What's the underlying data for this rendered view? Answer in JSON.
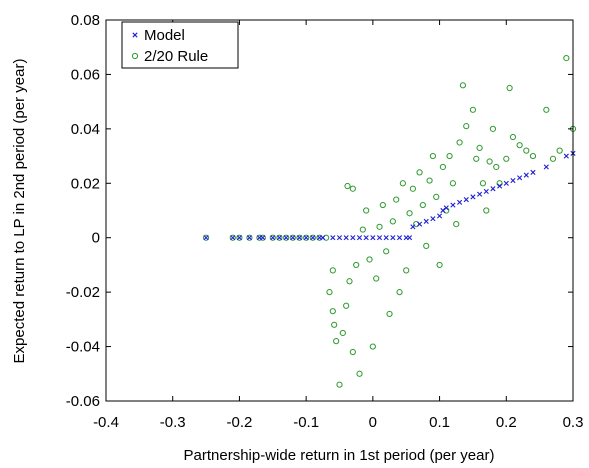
{
  "chart_data": {
    "type": "scatter",
    "xlabel": "Partnership-wide return in 1st period (per year)",
    "ylabel": "Expected return to LP in 2nd period (per year)",
    "xlim": [
      -0.4,
      0.3
    ],
    "ylim": [
      -0.06,
      0.08
    ],
    "x_ticks": [
      "-0.4",
      "-0.3",
      "-0.2",
      "-0.1",
      "0",
      "0.1",
      "0.2",
      "0.3"
    ],
    "y_ticks": [
      "-0.06",
      "-0.04",
      "-0.02",
      "0",
      "0.02",
      "0.04",
      "0.06",
      "0.08"
    ],
    "grid": false,
    "legend_placement": "top-left",
    "series": [
      {
        "name": "Model",
        "marker": "x",
        "color": "#1f1fd6",
        "points": [
          [
            -0.25,
            0.0
          ],
          [
            -0.21,
            0.0
          ],
          [
            -0.2,
            0.0
          ],
          [
            -0.185,
            0.0
          ],
          [
            -0.17,
            0.0
          ],
          [
            -0.165,
            0.0
          ],
          [
            -0.15,
            0.0
          ],
          [
            -0.14,
            0.0
          ],
          [
            -0.13,
            0.0
          ],
          [
            -0.12,
            0.0
          ],
          [
            -0.11,
            0.0
          ],
          [
            -0.1,
            0.0
          ],
          [
            -0.09,
            0.0
          ],
          [
            -0.08,
            0.0
          ],
          [
            -0.075,
            0.0
          ],
          [
            -0.06,
            0.0
          ],
          [
            -0.05,
            0.0
          ],
          [
            -0.04,
            0.0
          ],
          [
            -0.03,
            0.0
          ],
          [
            -0.02,
            0.0
          ],
          [
            -0.01,
            0.0
          ],
          [
            0.0,
            0.0
          ],
          [
            0.01,
            0.0
          ],
          [
            0.02,
            0.0
          ],
          [
            0.03,
            0.0
          ],
          [
            0.04,
            0.0
          ],
          [
            0.05,
            0.0
          ],
          [
            0.055,
            0.0
          ],
          [
            0.06,
            0.004
          ],
          [
            0.07,
            0.005
          ],
          [
            0.08,
            0.006
          ],
          [
            0.09,
            0.007
          ],
          [
            0.1,
            0.008
          ],
          [
            0.105,
            0.01
          ],
          [
            0.11,
            0.011
          ],
          [
            0.12,
            0.012
          ],
          [
            0.13,
            0.013
          ],
          [
            0.14,
            0.014
          ],
          [
            0.15,
            0.015
          ],
          [
            0.16,
            0.016
          ],
          [
            0.17,
            0.017
          ],
          [
            0.18,
            0.018
          ],
          [
            0.19,
            0.019
          ],
          [
            0.2,
            0.02
          ],
          [
            0.21,
            0.021
          ],
          [
            0.22,
            0.022
          ],
          [
            0.23,
            0.023
          ],
          [
            0.24,
            0.024
          ],
          [
            0.26,
            0.026
          ],
          [
            0.29,
            0.03
          ],
          [
            0.3,
            0.031
          ]
        ]
      },
      {
        "name": "2/20 Rule",
        "marker": "o",
        "color": "#2e9a2e",
        "points": [
          [
            -0.25,
            0.0
          ],
          [
            -0.21,
            0.0
          ],
          [
            -0.2,
            0.0
          ],
          [
            -0.185,
            0.0
          ],
          [
            -0.17,
            0.0
          ],
          [
            -0.165,
            0.0
          ],
          [
            -0.15,
            0.0
          ],
          [
            -0.14,
            0.0
          ],
          [
            -0.13,
            0.0
          ],
          [
            -0.12,
            0.0
          ],
          [
            -0.11,
            0.0
          ],
          [
            -0.1,
            0.0
          ],
          [
            -0.09,
            0.0
          ],
          [
            -0.08,
            0.0
          ],
          [
            -0.07,
            0.0
          ],
          [
            -0.065,
            -0.02
          ],
          [
            -0.06,
            -0.027
          ],
          [
            -0.058,
            -0.032
          ],
          [
            -0.06,
            -0.012
          ],
          [
            -0.055,
            -0.038
          ],
          [
            -0.05,
            -0.054
          ],
          [
            -0.045,
            -0.035
          ],
          [
            -0.04,
            -0.025
          ],
          [
            -0.038,
            0.019
          ],
          [
            -0.035,
            -0.016
          ],
          [
            -0.03,
            0.018
          ],
          [
            -0.03,
            -0.042
          ],
          [
            -0.025,
            -0.01
          ],
          [
            -0.02,
            -0.05
          ],
          [
            -0.015,
            0.003
          ],
          [
            -0.01,
            0.01
          ],
          [
            -0.005,
            -0.008
          ],
          [
            0.0,
            -0.04
          ],
          [
            0.005,
            -0.015
          ],
          [
            0.01,
            0.004
          ],
          [
            0.015,
            0.012
          ],
          [
            0.02,
            -0.005
          ],
          [
            0.025,
            -0.028
          ],
          [
            0.03,
            0.006
          ],
          [
            0.035,
            0.014
          ],
          [
            0.04,
            -0.02
          ],
          [
            0.045,
            0.02
          ],
          [
            0.05,
            -0.012
          ],
          [
            0.055,
            0.009
          ],
          [
            0.06,
            0.018
          ],
          [
            0.065,
            0.005
          ],
          [
            0.07,
            0.024
          ],
          [
            0.075,
            0.012
          ],
          [
            0.08,
            -0.003
          ],
          [
            0.085,
            0.021
          ],
          [
            0.09,
            0.03
          ],
          [
            0.095,
            0.015
          ],
          [
            0.1,
            -0.01
          ],
          [
            0.105,
            0.026
          ],
          [
            0.11,
            0.01
          ],
          [
            0.115,
            0.03
          ],
          [
            0.12,
            0.02
          ],
          [
            0.125,
            0.005
          ],
          [
            0.13,
            0.035
          ],
          [
            0.135,
            0.056
          ],
          [
            0.14,
            0.041
          ],
          [
            0.15,
            0.047
          ],
          [
            0.155,
            0.029
          ],
          [
            0.16,
            0.033
          ],
          [
            0.165,
            0.02
          ],
          [
            0.17,
            0.01
          ],
          [
            0.175,
            0.028
          ],
          [
            0.18,
            0.04
          ],
          [
            0.185,
            0.026
          ],
          [
            0.19,
            0.02
          ],
          [
            0.2,
            0.029
          ],
          [
            0.205,
            0.055
          ],
          [
            0.21,
            0.037
          ],
          [
            0.22,
            0.034
          ],
          [
            0.23,
            0.032
          ],
          [
            0.24,
            0.03
          ],
          [
            0.26,
            0.047
          ],
          [
            0.27,
            0.029
          ],
          [
            0.28,
            0.032
          ],
          [
            0.29,
            0.066
          ],
          [
            0.3,
            0.04
          ]
        ]
      }
    ]
  }
}
